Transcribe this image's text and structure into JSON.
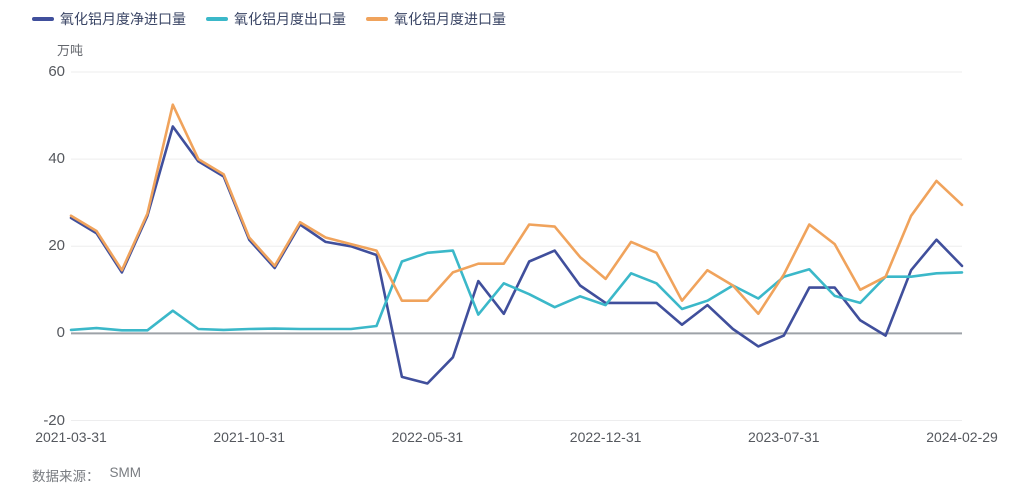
{
  "unit_label": "万吨",
  "footer": {
    "source_label": "数据来源：",
    "source_value": "SMM"
  },
  "y_axis": {
    "ticks": [
      60,
      40,
      20,
      0,
      -20
    ],
    "min": -20,
    "max": 60
  },
  "x_axis": {
    "tick_labels": [
      "2021-03-31",
      "2021-10-31",
      "2022-05-31",
      "2022-12-31",
      "2023-07-31",
      "2024-02-29"
    ],
    "tick_indices": [
      0,
      7,
      14,
      21,
      28,
      35
    ]
  },
  "colors": {
    "grid_line": "#ededee",
    "zero_line": "#9da2a8",
    "axis_text": "#55585e",
    "legend_text": "#3a4565",
    "footer_text": "#797c81",
    "background": "#ffffff"
  },
  "chart_data": {
    "type": "line",
    "title": "",
    "ylabel": "万吨",
    "ylim": [
      -20,
      60
    ],
    "grid": true,
    "legend_position": "top-left",
    "x": [
      "2021-03-31",
      "2021-04-30",
      "2021-05-31",
      "2021-06-30",
      "2021-07-31",
      "2021-08-31",
      "2021-09-30",
      "2021-10-31",
      "2021-11-30",
      "2021-12-31",
      "2022-01-31",
      "2022-02-28",
      "2022-03-31",
      "2022-04-30",
      "2022-05-31",
      "2022-06-30",
      "2022-07-31",
      "2022-08-31",
      "2022-09-30",
      "2022-10-31",
      "2022-11-30",
      "2022-12-31",
      "2023-01-31",
      "2023-02-28",
      "2023-03-31",
      "2023-04-30",
      "2023-05-31",
      "2023-06-30",
      "2023-07-31",
      "2023-08-31",
      "2023-09-30",
      "2023-10-31",
      "2023-11-30",
      "2023-12-31",
      "2024-01-31",
      "2024-02-29"
    ],
    "series": [
      {
        "name": "氧化铝月度净进口量",
        "color": "#404f9c",
        "values": [
          26.5,
          23,
          14,
          27,
          47.5,
          39.5,
          36,
          21.5,
          15,
          25,
          21,
          20,
          18,
          -10,
          -11.5,
          -5.5,
          12,
          4.5,
          16.5,
          19,
          11,
          7,
          7,
          7,
          2,
          6.5,
          1,
          -3,
          -0.5,
          10.5,
          10.5,
          3,
          -0.5,
          14.5,
          21.5,
          15.5
        ]
      },
      {
        "name": "氧化铝月度出口量",
        "color": "#3bb8c9",
        "values": [
          0.8,
          1.2,
          0.7,
          0.7,
          5.2,
          1,
          0.8,
          1,
          1.1,
          1,
          1,
          1,
          1.7,
          16.5,
          18.5,
          19,
          4.3,
          11.5,
          9,
          6,
          8.5,
          6.5,
          13.8,
          11.5,
          5.6,
          7.5,
          11,
          8,
          13,
          14.7,
          8.6,
          7,
          13,
          13,
          13.8,
          14
        ]
      },
      {
        "name": "氧化铝月度进口量",
        "color": "#f0a35c",
        "values": [
          27,
          23.5,
          14.5,
          27.5,
          52.5,
          40,
          36.5,
          22,
          15.5,
          25.5,
          22,
          20.5,
          19,
          7.5,
          7.5,
          14,
          16,
          16,
          25,
          24.5,
          17.5,
          12.5,
          21,
          18.5,
          7.5,
          14.5,
          11,
          4.5,
          13.5,
          25,
          20.5,
          10,
          13,
          27,
          35,
          29.5
        ]
      }
    ]
  }
}
